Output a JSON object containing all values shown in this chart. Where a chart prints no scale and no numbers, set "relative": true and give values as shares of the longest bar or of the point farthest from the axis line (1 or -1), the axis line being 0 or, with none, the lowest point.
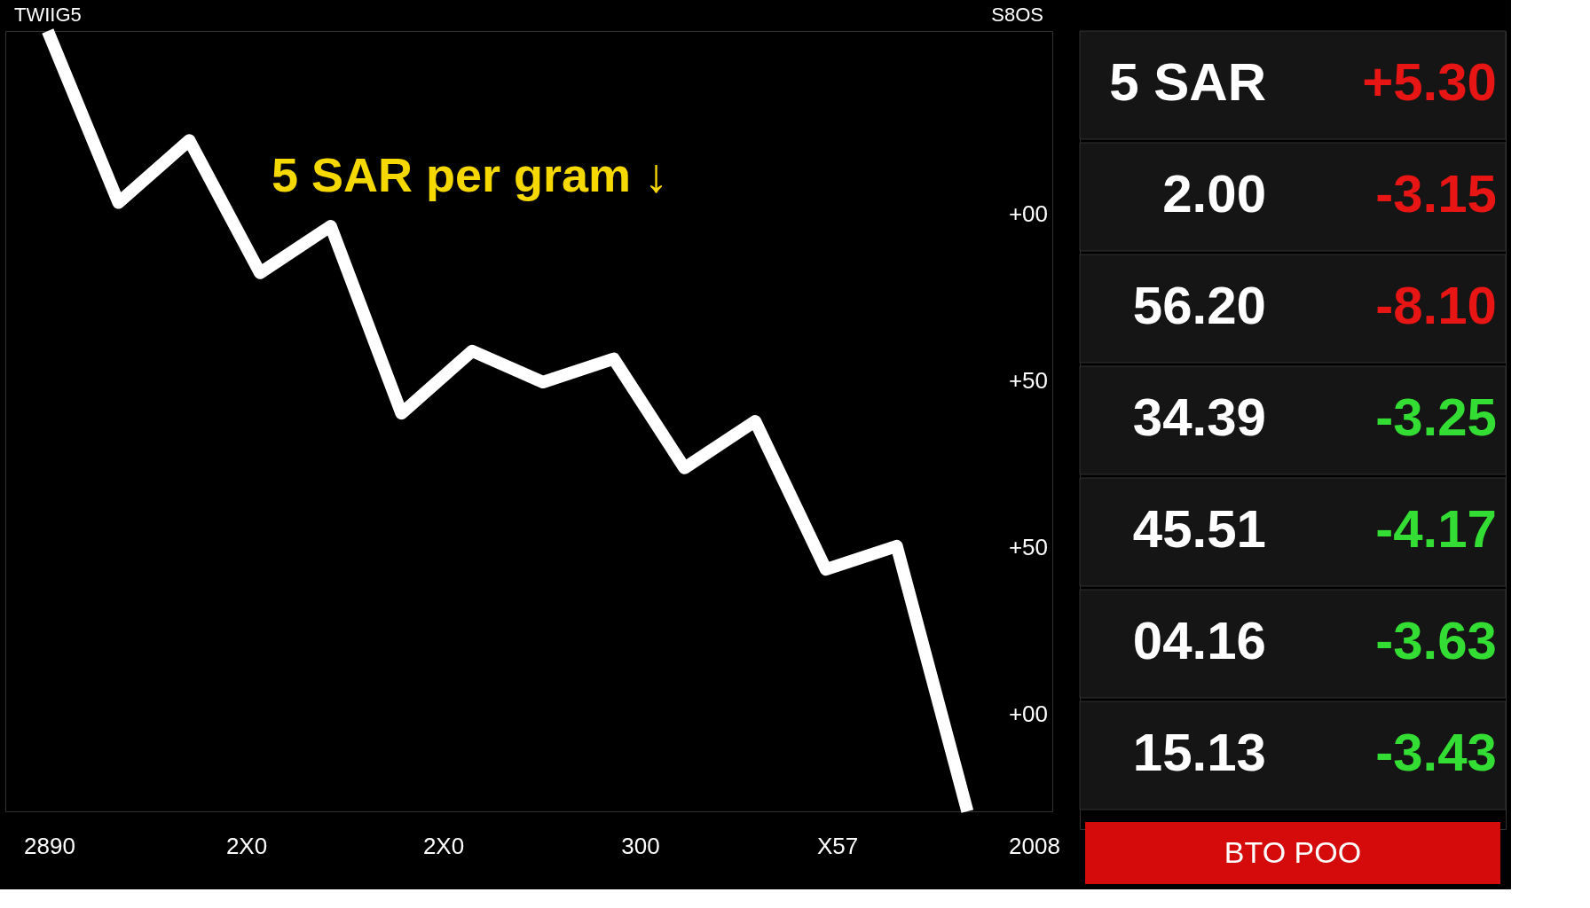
{
  "chart_data": [
    {
      "type": "line",
      "relative": true,
      "categories": [
        null,
        null,
        null,
        null,
        null,
        null,
        null,
        null,
        null,
        null,
        null,
        null,
        null,
        null
      ],
      "series": [
        {
          "color": "#ffffff",
          "values": [
            1.0,
            0.78,
            0.86,
            0.69,
            0.75,
            0.51,
            0.59,
            0.55,
            0.58,
            0.44,
            0.5,
            0.31,
            0.34,
            0.0
          ]
        }
      ],
      "grid": false,
      "marker": "none",
      "line_style": "solid",
      "title": "5 SAR per gram ↓",
      "annotations": [
        "TWIIG5",
        "S8OS",
        "+00",
        "+50",
        "+50",
        "+00",
        "2890",
        "2X0",
        "2X0",
        "300",
        "X57",
        "2008"
      ]
    },
    {
      "type": "other",
      "annotations": [
        "5 SAR",
        "+5.30",
        "2.00",
        "-3.15",
        "56.20",
        "-8.10",
        "34.39",
        "-3.25",
        "45.51",
        "-4.17",
        "04.16",
        "-3.63",
        "15.13",
        "-3.43",
        "BTO POO"
      ]
    }
  ]
}
